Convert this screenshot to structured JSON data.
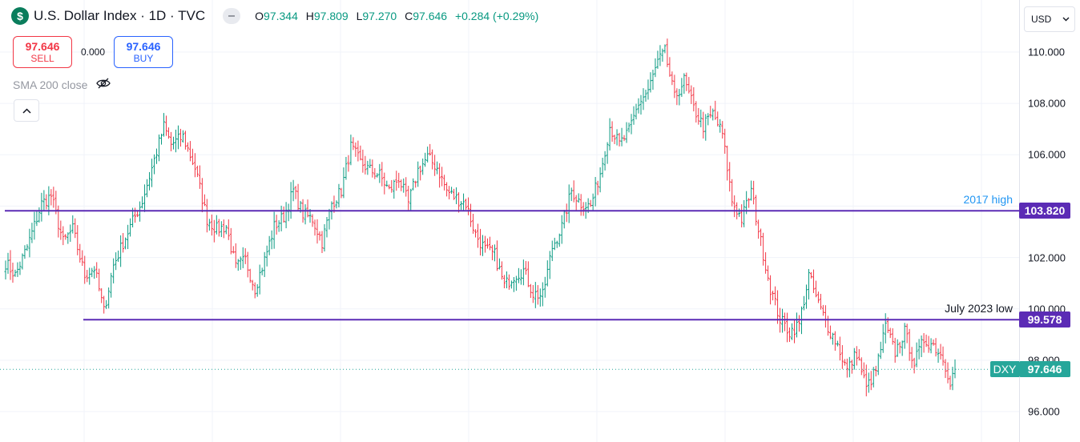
{
  "header": {
    "logo_glyph": "$",
    "title": "U.S. Dollar Index · 1D · TVC",
    "ohlc": {
      "o_key": "O",
      "o_val": "97.344",
      "h_key": "H",
      "h_val": "97.809",
      "l_key": "L",
      "l_val": "97.270",
      "c_key": "C",
      "c_val": "97.646",
      "change": "+0.284 (+0.29%)"
    }
  },
  "trade": {
    "sell_price": "97.646",
    "sell_label": "SELL",
    "spread": "0.000",
    "buy_price": "97.646",
    "buy_label": "BUY"
  },
  "indicator": {
    "label": "SMA 200 close",
    "icon": "eye-off-icon"
  },
  "currency": {
    "label": "USD",
    "icon": "chevron-down-icon"
  },
  "colors": {
    "up": "#089981",
    "down": "#f23645",
    "hline": "#5b2bb5",
    "label_blue": "#2196f3",
    "last": "#26a69a",
    "grid": "#f0f3fa"
  },
  "price_axis": {
    "ticks": [
      "110.000",
      "108.000",
      "106.000",
      "102.000",
      "100.000",
      "98.000",
      "96.000"
    ]
  },
  "horizontal_lines": [
    {
      "label": "2017 high",
      "value_text": "103.820",
      "value": 103.82
    },
    {
      "label": "July 2023 low",
      "value_text": "99.578",
      "value": 99.578
    }
  ],
  "last_price": {
    "symbol": "DXY",
    "value_text": "97.646",
    "value": 97.646
  },
  "chart_data": {
    "type": "ohlc",
    "ylim": [
      95.0,
      111.6
    ],
    "close_anchors": [
      [
        0,
        101.8
      ],
      [
        4,
        101.3
      ],
      [
        9,
        102.4
      ],
      [
        15,
        104.1
      ],
      [
        19,
        104.4
      ],
      [
        24,
        102.6
      ],
      [
        28,
        103.1
      ],
      [
        33,
        101.3
      ],
      [
        37,
        101.6
      ],
      [
        41,
        99.9
      ],
      [
        45,
        101.7
      ],
      [
        51,
        103.0
      ],
      [
        57,
        104.2
      ],
      [
        62,
        105.8
      ],
      [
        66,
        107.1
      ],
      [
        69,
        106.4
      ],
      [
        74,
        106.7
      ],
      [
        79,
        105.5
      ],
      [
        84,
        103.5
      ],
      [
        88,
        103.1
      ],
      [
        92,
        103.2
      ],
      [
        96,
        101.6
      ],
      [
        100,
        101.9
      ],
      [
        104,
        100.8
      ],
      [
        108,
        101.9
      ],
      [
        112,
        103.2
      ],
      [
        116,
        103.6
      ],
      [
        120,
        104.6
      ],
      [
        124,
        103.7
      ],
      [
        128,
        103.5
      ],
      [
        132,
        102.6
      ],
      [
        136,
        104.1
      ],
      [
        140,
        104.6
      ],
      [
        144,
        106.3
      ],
      [
        148,
        105.7
      ],
      [
        152,
        105.4
      ],
      [
        156,
        105.2
      ],
      [
        160,
        104.6
      ],
      [
        164,
        105.1
      ],
      [
        168,
        104.1
      ],
      [
        172,
        105.4
      ],
      [
        176,
        105.9
      ],
      [
        180,
        105.5
      ],
      [
        184,
        104.6
      ],
      [
        188,
        104.3
      ],
      [
        192,
        104.1
      ],
      [
        196,
        102.9
      ],
      [
        200,
        102.3
      ],
      [
        204,
        102.1
      ],
      [
        208,
        100.9
      ],
      [
        212,
        101.3
      ],
      [
        216,
        101.5
      ],
      [
        220,
        100.6
      ],
      [
        224,
        100.5
      ],
      [
        228,
        102.4
      ],
      [
        232,
        103.2
      ],
      [
        236,
        104.6
      ],
      [
        240,
        104.1
      ],
      [
        244,
        104.0
      ],
      [
        248,
        105.3
      ],
      [
        252,
        107.1
      ],
      [
        256,
        106.4
      ],
      [
        260,
        106.9
      ],
      [
        264,
        108.0
      ],
      [
        268,
        108.5
      ],
      [
        272,
        109.6
      ],
      [
        275,
        110.0
      ],
      [
        279,
        108.2
      ],
      [
        283,
        108.9
      ],
      [
        287,
        107.8
      ],
      [
        291,
        107.1
      ],
      [
        295,
        107.6
      ],
      [
        299,
        106.8
      ],
      [
        303,
        104.2
      ],
      [
        307,
        103.5
      ],
      [
        311,
        104.6
      ],
      [
        315,
        102.6
      ],
      [
        319,
        100.8
      ],
      [
        323,
        99.6
      ],
      [
        327,
        99.1
      ],
      [
        331,
        99.4
      ],
      [
        335,
        101.3
      ],
      [
        339,
        100.2
      ],
      [
        343,
        99.3
      ],
      [
        347,
        98.6
      ],
      [
        351,
        97.6
      ],
      [
        355,
        98.3
      ],
      [
        359,
        96.9
      ],
      [
        363,
        97.6
      ],
      [
        367,
        99.3
      ],
      [
        371,
        98.3
      ],
      [
        375,
        99.1
      ],
      [
        379,
        97.9
      ],
      [
        383,
        98.8
      ],
      [
        387,
        98.6
      ],
      [
        391,
        98.1
      ],
      [
        394,
        97.2
      ],
      [
        396,
        97.646
      ]
    ]
  }
}
